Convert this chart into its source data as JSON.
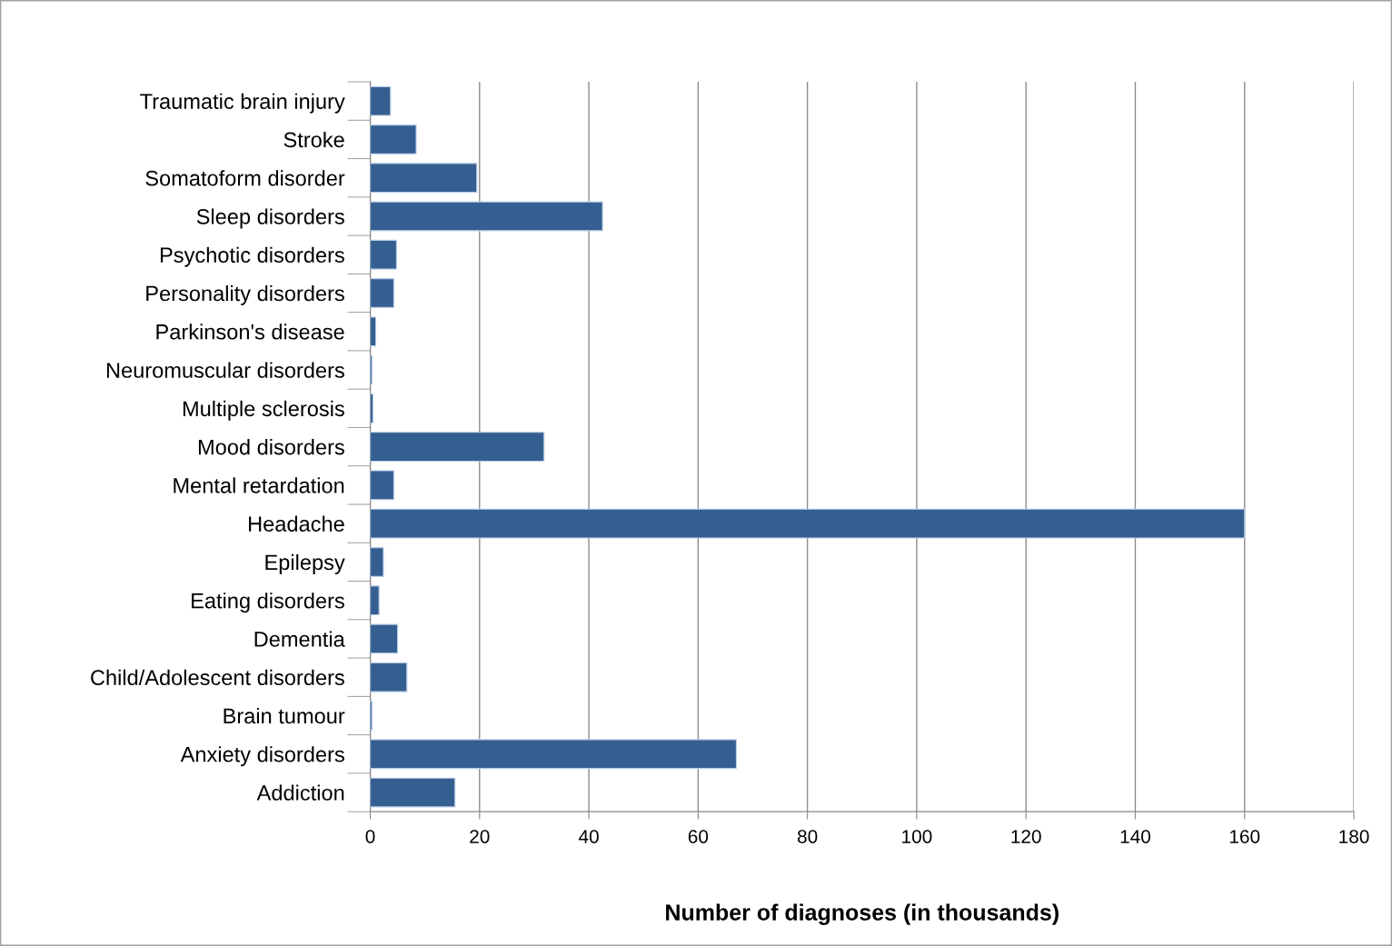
{
  "chart_data": {
    "type": "bar",
    "orientation": "horizontal",
    "xlabel": "Number of diagnoses (in thousands)",
    "categories": [
      "Traumatic brain injury",
      "Stroke",
      "Somatoform disorder",
      "Sleep disorders",
      "Psychotic disorders",
      "Personality disorders",
      "Parkinson's disease",
      "Neuromuscular disorders",
      "Multiple sclerosis",
      "Mood disorders",
      "Mental retardation",
      "Headache",
      "Epilepsy",
      "Eating disorders",
      "Dementia",
      "Child/Adolescent disorders",
      "Brain tumour",
      "Anxiety disorders",
      "Addiction"
    ],
    "values": [
      3.7,
      8.4,
      19.5,
      42.5,
      4.8,
      4.3,
      1.0,
      0.3,
      0.5,
      31.8,
      4.3,
      160,
      2.4,
      1.6,
      5.0,
      6.7,
      0.3,
      67,
      15.5
    ],
    "color": "#355f91",
    "xlim": [
      0,
      180
    ],
    "xticks": [
      0,
      20,
      40,
      60,
      80,
      100,
      120,
      140,
      160,
      180
    ],
    "grid": "x",
    "legend": false
  }
}
